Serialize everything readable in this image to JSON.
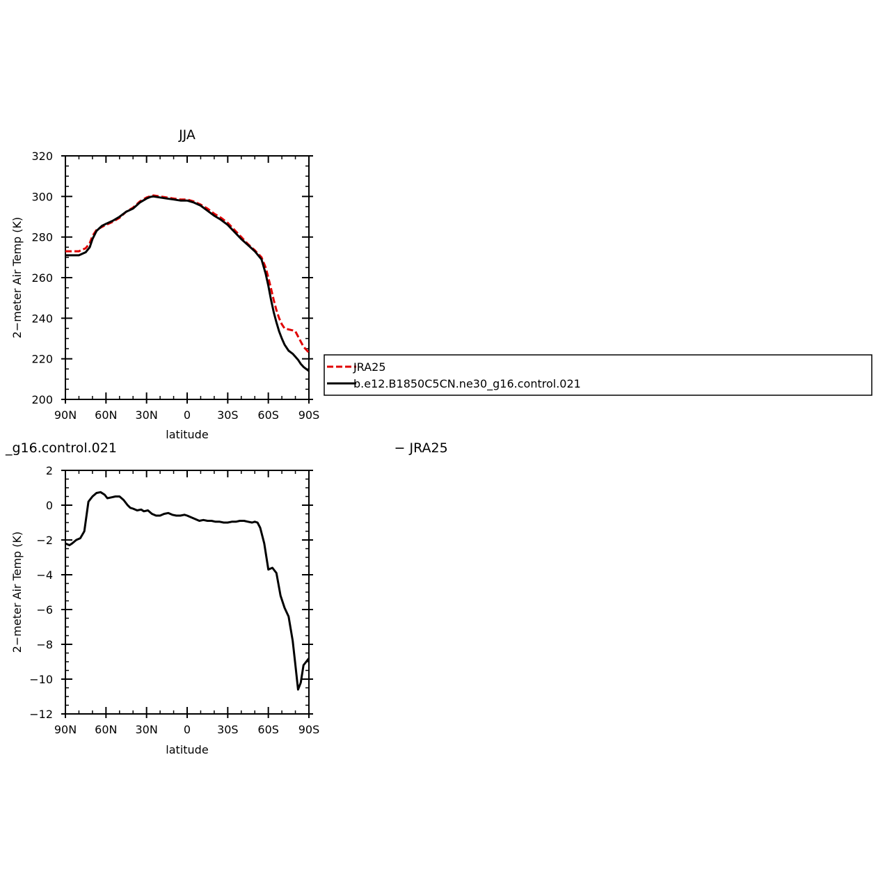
{
  "chart_data": [
    {
      "type": "line",
      "title": "JJA",
      "xlabel": "latitude",
      "ylabel": "2−meter Air Temp (K)",
      "xlim": [
        90,
        -90
      ],
      "ylim": [
        200,
        320
      ],
      "xticks": [
        90,
        60,
        30,
        0,
        -30,
        -60,
        -90
      ],
      "xtick_labels": [
        "90N",
        "60N",
        "30N",
        "0",
        "30S",
        "60S",
        "90S"
      ],
      "yticks": [
        200,
        220,
        240,
        260,
        280,
        300,
        320
      ],
      "ytick_labels": [
        "200",
        "220",
        "240",
        "260",
        "280",
        "300",
        "320"
      ],
      "legend": [
        "JRA25",
        "b.e12.B1850C5CN.ne30_g16.control.021"
      ],
      "legend_placement": "right",
      "series": [
        {
          "name": "JRA25",
          "color": "#e00000",
          "dash": "dashed",
          "x": [
            90,
            85,
            80,
            75,
            72,
            70,
            67,
            63,
            60,
            55,
            50,
            45,
            40,
            35,
            30,
            27,
            25,
            20,
            15,
            10,
            5,
            0,
            -5,
            -10,
            -15,
            -20,
            -25,
            -30,
            -35,
            -40,
            -45,
            -50,
            -55,
            -58,
            -60,
            -62,
            -64,
            -66,
            -68,
            -70,
            -72,
            -75,
            -78,
            -80,
            -82,
            -84,
            -86,
            -88,
            -90
          ],
          "y": [
            273,
            273,
            273,
            274.5,
            277,
            280.5,
            283.5,
            285,
            286,
            287.5,
            289.5,
            292.5,
            294.5,
            297.5,
            299.5,
            300.2,
            300.5,
            300,
            299.5,
            299,
            298.5,
            298.5,
            297.5,
            296,
            294,
            291.5,
            289.5,
            287,
            283.5,
            280,
            276.5,
            273.5,
            270,
            265,
            260,
            254.5,
            249,
            244,
            240,
            237,
            235,
            234.5,
            234,
            233.5,
            231,
            228.5,
            226,
            224.5,
            223
          ]
        },
        {
          "name": "b.e12.B1850C5CN.ne30_g16.control.021",
          "color": "#000000",
          "dash": "solid",
          "x": [
            90,
            85,
            80,
            75,
            72,
            70,
            67,
            63,
            60,
            55,
            50,
            45,
            40,
            35,
            30,
            27,
            25,
            20,
            15,
            10,
            5,
            0,
            -5,
            -10,
            -15,
            -20,
            -25,
            -30,
            -35,
            -40,
            -45,
            -50,
            -55,
            -58,
            -60,
            -62,
            -64,
            -66,
            -68,
            -70,
            -72,
            -75,
            -78,
            -80,
            -82,
            -84,
            -86,
            -88,
            -90
          ],
          "y": [
            271,
            271,
            271,
            272.5,
            275,
            279,
            283,
            285.5,
            286.5,
            288,
            290,
            292.5,
            294,
            297,
            299,
            299.8,
            300,
            299.5,
            299,
            298.5,
            298,
            298,
            297,
            295.5,
            293,
            290.5,
            288.5,
            286,
            282.5,
            279,
            276,
            273,
            269,
            262,
            256,
            249,
            243,
            238,
            233.5,
            230,
            227,
            224,
            222.5,
            221,
            219.5,
            217.5,
            216,
            215,
            214
          ]
        }
      ]
    },
    {
      "type": "line",
      "title": "_g16.control.021                                                                  − JRA25",
      "xlabel": "latitude",
      "ylabel": "2−meter Air Temp (K)",
      "xlim": [
        90,
        -90
      ],
      "ylim": [
        -12,
        2
      ],
      "xticks": [
        90,
        60,
        30,
        0,
        -30,
        -60,
        -90
      ],
      "xtick_labels": [
        "90N",
        "60N",
        "30N",
        "0",
        "30S",
        "60S",
        "90S"
      ],
      "yticks": [
        -12,
        -10,
        -8,
        -6,
        -4,
        -2,
        0,
        2
      ],
      "ytick_labels": [
        "−12",
        "−10",
        "−8",
        "−6",
        "−4",
        "−2",
        "0",
        "2"
      ],
      "series": [
        {
          "color": "#000000",
          "dash": "solid",
          "x": [
            90,
            87,
            85,
            82,
            79,
            76,
            73,
            70,
            67,
            64,
            61,
            59,
            56,
            53,
            50,
            47,
            44,
            42,
            40,
            37,
            34,
            32,
            29,
            26,
            23,
            20,
            17,
            14,
            11,
            8,
            5,
            2,
            0,
            -3,
            -6,
            -9,
            -12,
            -15,
            -18,
            -21,
            -24,
            -27,
            -30,
            -33,
            -36,
            -39,
            -42,
            -45,
            -48,
            -50,
            -52,
            -54,
            -57,
            -60,
            -63,
            -66,
            -69,
            -72,
            -75,
            -78,
            -80,
            -82,
            -84,
            -86,
            -88,
            -90
          ],
          "y": [
            -2.2,
            -2.3,
            -2.2,
            -2.0,
            -1.9,
            -1.5,
            0.2,
            0.5,
            0.7,
            0.75,
            0.6,
            0.4,
            0.45,
            0.5,
            0.5,
            0.3,
            0.0,
            -0.15,
            -0.2,
            -0.3,
            -0.25,
            -0.35,
            -0.3,
            -0.5,
            -0.6,
            -0.6,
            -0.5,
            -0.45,
            -0.55,
            -0.6,
            -0.6,
            -0.55,
            -0.6,
            -0.7,
            -0.8,
            -0.9,
            -0.85,
            -0.9,
            -0.9,
            -0.95,
            -0.95,
            -1.0,
            -1.0,
            -0.95,
            -0.95,
            -0.9,
            -0.9,
            -0.95,
            -1.0,
            -0.95,
            -1.0,
            -1.3,
            -2.2,
            -3.7,
            -3.6,
            -3.9,
            -5.2,
            -5.9,
            -6.4,
            -7.8,
            -9.2,
            -10.6,
            -10.2,
            -9.2,
            -9.0,
            -8.8
          ]
        }
      ]
    }
  ]
}
